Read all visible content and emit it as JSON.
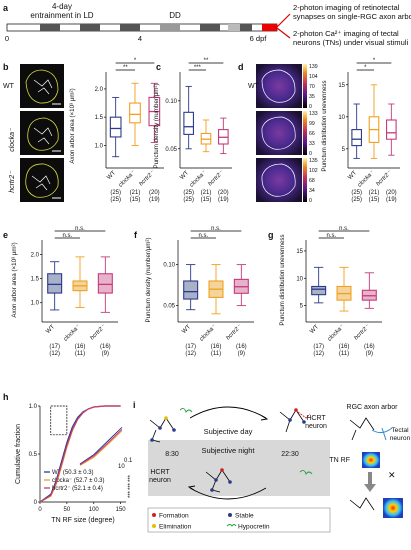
{
  "panel_a": {
    "label": "a",
    "entrainment": "4-day\nentrainment in LD",
    "dd": "DD",
    "ticks": [
      "0",
      "4",
      "6 dpf"
    ],
    "outcomes": [
      "2-photon imaging of retinotectal\nsynapses on single-RGC axon arbor",
      "2-photon Ca²⁺ imaging of tectal\nneurons (TNs) under visual stimuli"
    ]
  },
  "genotypes": {
    "wt": "WT",
    "clocka": "clocka⁻",
    "hcrtr2": "hcrtr2⁻",
    "colors": {
      "wt": "#2b3a8c",
      "clocka": "#f0a020",
      "hcrtr2": "#c43a7a"
    }
  },
  "panel_b": {
    "label": "b",
    "ylabel": "Axon arbor area (×10³ μm²)",
    "yticks": [
      "1.0",
      "1.5",
      "2.0"
    ],
    "n1": [
      "(25)",
      "(21)",
      "(20)"
    ],
    "n2": [
      "(25)",
      "(15)",
      "(19)"
    ],
    "sig": [
      "**",
      "*"
    ]
  },
  "panel_c": {
    "label": "c",
    "ylabel": "Punctum density (number/μm²)",
    "yticks": [
      "0.05",
      "0.10"
    ],
    "n1": [
      "(25)",
      "(21)",
      "(20)"
    ],
    "n2": [
      "(25)",
      "(15)",
      "(19)"
    ],
    "sig": [
      "***",
      "**"
    ]
  },
  "panel_d": {
    "label": "d",
    "ylabel": "Punctum distribution unevenness",
    "yticks": [
      "5",
      "10",
      "15"
    ],
    "n1": [
      "(25)",
      "(21)",
      "(20)"
    ],
    "n2": [
      "(25)",
      "(15)",
      "(19)"
    ],
    "sig": [
      "*",
      "*"
    ],
    "colorbars": [
      [
        "139",
        "104",
        "70",
        "35",
        "0"
      ],
      [
        "133",
        "99",
        "66",
        "33",
        "0"
      ],
      [
        "135",
        "102",
        "68",
        "34",
        "0"
      ]
    ]
  },
  "panel_e": {
    "label": "e",
    "ylabel": "Axon arbor area (×10³ μm²)",
    "yticks": [
      "1.0",
      "1.5",
      "2.0"
    ],
    "n1": [
      "(17)",
      "(16)",
      "(16)"
    ],
    "n2": [
      "(12)",
      "(11)",
      "(9)"
    ],
    "sig": [
      "n.s.",
      "n.s."
    ]
  },
  "panel_f": {
    "label": "f",
    "ylabel": "Punctum density (number/μm²)",
    "yticks": [
      "0.05",
      "0.10"
    ],
    "n1": [
      "(17)",
      "(16)",
      "(16)"
    ],
    "n2": [
      "(12)",
      "(11)",
      "(9)"
    ],
    "sig": [
      "n.s.",
      "n.s."
    ]
  },
  "panel_g": {
    "label": "g",
    "ylabel": "Punctum distribution unevenness",
    "yticks": [
      "5",
      "10",
      "15"
    ],
    "n1": [
      "(17)",
      "(16)",
      "(16)"
    ],
    "n2": [
      "(12)",
      "(11)",
      "(9)"
    ],
    "sig": [
      "n.s.",
      "n.s."
    ]
  },
  "panel_h": {
    "label": "h",
    "ylabel": "Cumulative fraction",
    "xlabel": "TN RF size (degree)",
    "yticks": [
      "0",
      "0.5",
      "1.0"
    ],
    "xticks": [
      "0",
      "50",
      "100",
      "150"
    ],
    "legend": [
      "WT (50.3 ± 0.3)",
      "clocka⁻ (52.7 ± 0.3)",
      "hcrtr2⁻ (52.1 ± 0.4)"
    ],
    "inset_scale": [
      "10",
      "0.1"
    ],
    "sig": [
      "***",
      "***",
      "***"
    ]
  },
  "panel_i": {
    "label": "i",
    "day": "Subjective day",
    "night": "Subjective night",
    "t1": "8:30",
    "t2": "22:30",
    "hcrt": "HCRT\nneuron",
    "arbor": "RGC axon arbor",
    "tectal": "Tectal\nneuron",
    "tnrf": "TN RF",
    "legend": [
      "Formation",
      "Stable",
      "Elimination",
      "Hypocretin"
    ]
  },
  "chart_data": [
    {
      "type": "box",
      "panel": "b",
      "categories": [
        "WT",
        "clocka⁻",
        "hcrtr2⁻"
      ],
      "ylim": [
        0.6,
        2.3
      ],
      "series": [
        {
          "name": "WT",
          "q1": 1.15,
          "median": 1.3,
          "q3": 1.5,
          "min": 0.8,
          "max": 1.85
        },
        {
          "name": "clocka⁻",
          "q1": 1.4,
          "median": 1.55,
          "q3": 1.75,
          "min": 1.0,
          "max": 2.1
        },
        {
          "name": "hcrtr2⁻",
          "q1": 1.35,
          "median": 1.6,
          "q3": 1.85,
          "min": 1.05,
          "max": 2.1
        }
      ]
    },
    {
      "type": "box",
      "panel": "c",
      "categories": [
        "WT",
        "clocka⁻",
        "hcrtr2⁻"
      ],
      "ylim": [
        0.03,
        0.13
      ],
      "series": [
        {
          "name": "WT",
          "q1": 0.065,
          "median": 0.073,
          "q3": 0.088,
          "min": 0.05,
          "max": 0.115
        },
        {
          "name": "clocka⁻",
          "q1": 0.055,
          "median": 0.06,
          "q3": 0.066,
          "min": 0.047,
          "max": 0.08
        },
        {
          "name": "hcrtr2⁻",
          "q1": 0.055,
          "median": 0.062,
          "q3": 0.07,
          "min": 0.045,
          "max": 0.082
        }
      ]
    },
    {
      "type": "box",
      "panel": "d",
      "categories": [
        "WT",
        "clocka⁻",
        "hcrtr2⁻"
      ],
      "ylim": [
        2,
        17
      ],
      "series": [
        {
          "name": "WT",
          "q1": 5.5,
          "median": 6.5,
          "q3": 8,
          "min": 3.5,
          "max": 12
        },
        {
          "name": "clocka⁻",
          "q1": 6,
          "median": 8,
          "q3": 10,
          "min": 3.5,
          "max": 15
        },
        {
          "name": "hcrtr2⁻",
          "q1": 6.5,
          "median": 7.5,
          "q3": 9.5,
          "min": 4,
          "max": 12
        }
      ]
    },
    {
      "type": "box",
      "panel": "e",
      "categories": [
        "WT",
        "clocka⁻",
        "hcrtr2⁻"
      ],
      "ylim": [
        0.6,
        2.3
      ],
      "series": [
        {
          "name": "WT",
          "q1": 1.2,
          "median": 1.38,
          "q3": 1.6,
          "min": 0.85,
          "max": 1.85
        },
        {
          "name": "clocka⁻",
          "q1": 1.25,
          "median": 1.35,
          "q3": 1.45,
          "min": 0.9,
          "max": 1.95
        },
        {
          "name": "hcrtr2⁻",
          "q1": 1.2,
          "median": 1.38,
          "q3": 1.6,
          "min": 0.8,
          "max": 1.95
        }
      ]
    },
    {
      "type": "box",
      "panel": "f",
      "categories": [
        "WT",
        "clocka⁻",
        "hcrtr2⁻"
      ],
      "ylim": [
        0.03,
        0.13
      ],
      "series": [
        {
          "name": "WT",
          "q1": 0.058,
          "median": 0.067,
          "q3": 0.08,
          "min": 0.045,
          "max": 0.1
        },
        {
          "name": "clocka⁻",
          "q1": 0.06,
          "median": 0.07,
          "q3": 0.08,
          "min": 0.04,
          "max": 0.1
        },
        {
          "name": "hcrtr2⁻",
          "q1": 0.065,
          "median": 0.073,
          "q3": 0.082,
          "min": 0.05,
          "max": 0.1
        }
      ]
    },
    {
      "type": "box",
      "panel": "g",
      "categories": [
        "WT",
        "clocka⁻",
        "hcrtr2⁻"
      ],
      "ylim": [
        2,
        17
      ],
      "series": [
        {
          "name": "WT",
          "q1": 7,
          "median": 8,
          "q3": 8.5,
          "min": 5.5,
          "max": 12
        },
        {
          "name": "clocka⁻",
          "q1": 6,
          "median": 7.2,
          "q3": 8.5,
          "min": 4,
          "max": 12
        },
        {
          "name": "hcrtr2⁻",
          "q1": 6,
          "median": 6.8,
          "q3": 7.8,
          "min": 4.5,
          "max": 11
        }
      ]
    },
    {
      "type": "line",
      "panel": "h",
      "xlabel": "TN RF size (degree)",
      "ylabel": "Cumulative fraction",
      "xlim": [
        0,
        160
      ],
      "ylim": [
        0,
        1
      ],
      "series": [
        {
          "name": "WT (50.3 ± 0.3)",
          "x": [
            0,
            20,
            30,
            40,
            50,
            60,
            70,
            80,
            90,
            100,
            120,
            150
          ],
          "y": [
            0,
            0.08,
            0.22,
            0.42,
            0.62,
            0.78,
            0.88,
            0.94,
            0.97,
            0.99,
            1.0,
            1.0
          ]
        },
        {
          "name": "clocka⁻ (52.7 ± 0.3)",
          "x": [
            0,
            20,
            30,
            40,
            50,
            60,
            70,
            80,
            90,
            100,
            120,
            150
          ],
          "y": [
            0,
            0.06,
            0.18,
            0.37,
            0.57,
            0.74,
            0.86,
            0.93,
            0.97,
            0.99,
            1.0,
            1.0
          ]
        },
        {
          "name": "hcrtr2⁻ (52.1 ± 0.4)",
          "x": [
            0,
            20,
            30,
            40,
            50,
            60,
            70,
            80,
            90,
            100,
            120,
            150
          ],
          "y": [
            0,
            0.07,
            0.2,
            0.39,
            0.59,
            0.75,
            0.86,
            0.93,
            0.97,
            0.99,
            1.0,
            1.0
          ]
        }
      ]
    }
  ]
}
